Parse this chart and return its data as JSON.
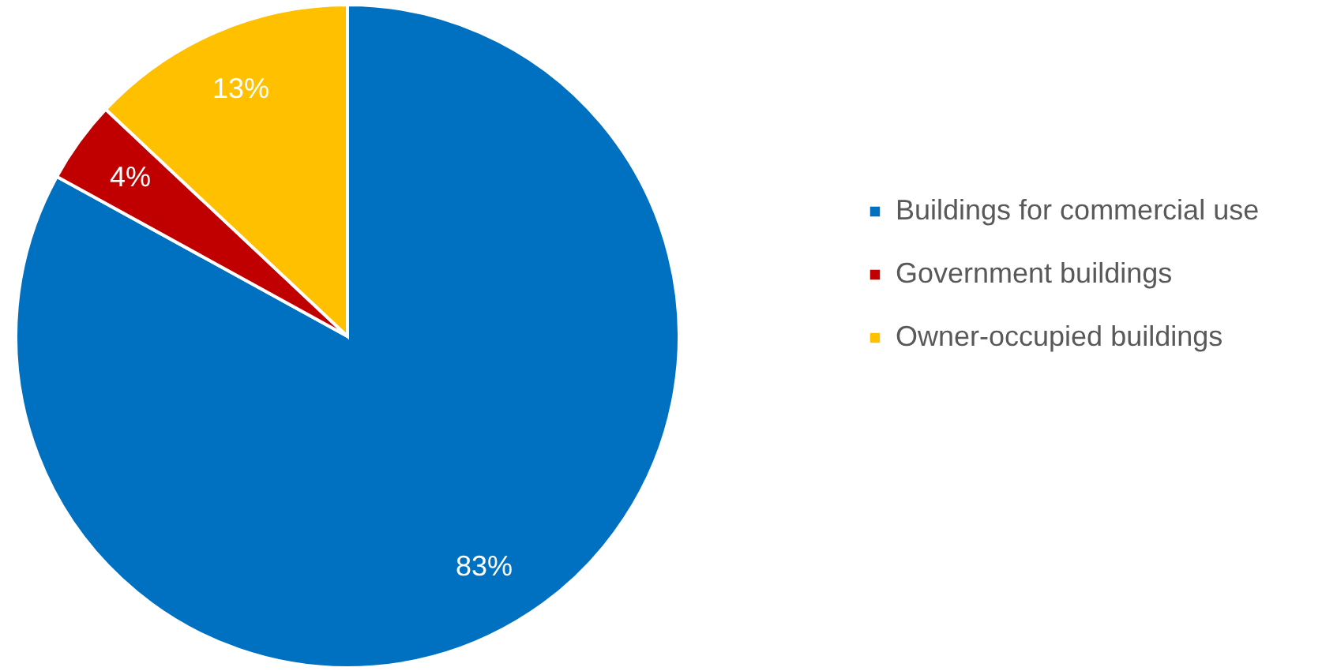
{
  "chart_data": {
    "type": "pie",
    "categories": [
      "Buildings for commercial use",
      "Government buildings",
      "Owner-occupied buildings"
    ],
    "values": [
      83,
      4,
      13
    ],
    "colors": [
      "#0070c0",
      "#c00000",
      "#ffc000"
    ],
    "value_labels": [
      "83%",
      "4%",
      "13%"
    ],
    "legend": "right"
  }
}
